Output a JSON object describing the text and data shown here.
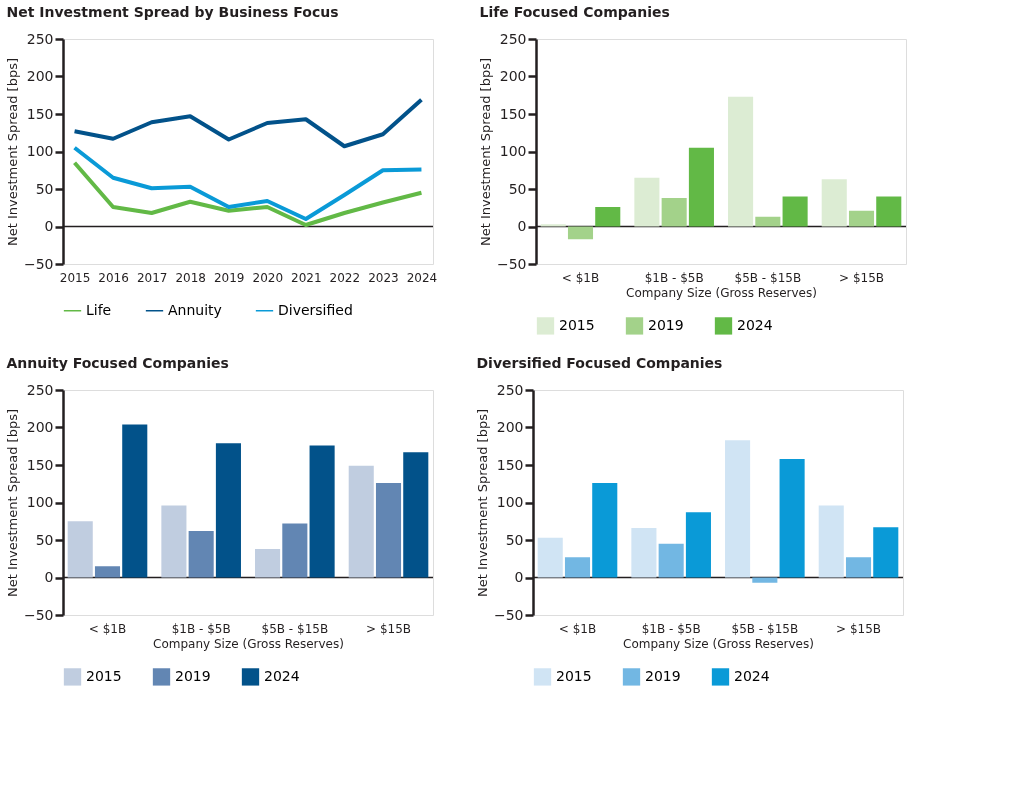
{
  "chart_data": [
    {
      "type": "line",
      "title": "Net Investment Spread by Business Focus",
      "ylabel": "Net Investment Spread [bps]",
      "categories": [
        "2015",
        "2016",
        "2017",
        "2018",
        "2019",
        "2020",
        "2021",
        "2022",
        "2023",
        "2024"
      ],
      "ylim": [
        -50,
        250
      ],
      "yticks": [
        -50,
        0,
        50,
        100,
        150,
        200,
        250
      ],
      "grid": false,
      "legend": "bottom",
      "marker": "none",
      "line_style": "solid",
      "ref_lines": [
        {
          "axis": "y",
          "value": 0,
          "color": "#231f20"
        }
      ],
      "series": [
        {
          "name": "Life",
          "color": "#62b946",
          "values": [
            85,
            26,
            18,
            33,
            21,
            26,
            2,
            18,
            32,
            45
          ]
        },
        {
          "name": "Annuity",
          "color": "#02528a",
          "values": [
            127,
            117,
            139,
            147,
            116,
            138,
            143,
            107,
            123,
            169
          ]
        },
        {
          "name": "Diversified",
          "color": "#0a9ad7",
          "values": [
            105,
            65,
            51,
            53,
            26,
            34,
            10,
            42,
            75,
            76
          ]
        }
      ]
    },
    {
      "type": "bar",
      "title": "Life Focused Companies",
      "xlabel": "Company Size (Gross Reserves)",
      "ylabel": "Net Investment Spread [bps]",
      "categories": [
        "< $1B",
        "$1B - $5B",
        "$5B - $15B",
        "> $15B"
      ],
      "ylim": [
        -50,
        250
      ],
      "yticks": [
        -50,
        0,
        50,
        100,
        150,
        200,
        250
      ],
      "grid": false,
      "legend": "bottom",
      "ref_lines": [
        {
          "axis": "y",
          "value": 0,
          "color": "#231f20"
        }
      ],
      "series": [
        {
          "name": "2015",
          "color": "#dcecd3",
          "values": [
            3,
            65,
            173,
            63
          ]
        },
        {
          "name": "2019",
          "color": "#a3d28a",
          "values": [
            -17,
            38,
            13,
            21
          ]
        },
        {
          "name": "2024",
          "color": "#62b946",
          "values": [
            26,
            105,
            40,
            40
          ]
        }
      ]
    },
    {
      "type": "bar",
      "title": "Annuity Focused Companies",
      "xlabel": "Company Size (Gross Reserves)",
      "ylabel": "Net Investment Spread [bps]",
      "categories": [
        "< $1B",
        "$1B - $5B",
        "$5B - $15B",
        "> $15B"
      ],
      "ylim": [
        -50,
        250
      ],
      "yticks": [
        -50,
        0,
        50,
        100,
        150,
        200,
        250
      ],
      "grid": false,
      "legend": "bottom",
      "ref_lines": [
        {
          "axis": "y",
          "value": 0,
          "color": "#231f20"
        }
      ],
      "series": [
        {
          "name": "2015",
          "color": "#c0cde0",
          "values": [
            75,
            96,
            38,
            149
          ]
        },
        {
          "name": "2019",
          "color": "#6286b3",
          "values": [
            15,
            62,
            72,
            126
          ]
        },
        {
          "name": "2024",
          "color": "#02528a",
          "values": [
            204,
            179,
            176,
            167
          ]
        }
      ]
    },
    {
      "type": "bar",
      "title": "Diversified Focused Companies",
      "xlabel": "Company Size (Gross Reserves)",
      "ylabel": "Net Investment Spread [bps]",
      "categories": [
        "< $1B",
        "$1B - $5B",
        "$5B - $15B",
        "> $15B"
      ],
      "ylim": [
        -50,
        250
      ],
      "yticks": [
        -50,
        0,
        50,
        100,
        150,
        200,
        250
      ],
      "grid": false,
      "legend": "bottom",
      "ref_lines": [
        {
          "axis": "y",
          "value": 0,
          "color": "#231f20"
        }
      ],
      "series": [
        {
          "name": "2015",
          "color": "#d0e4f4",
          "values": [
            53,
            66,
            183,
            96
          ]
        },
        {
          "name": "2019",
          "color": "#72b7e3",
          "values": [
            27,
            45,
            -7,
            27
          ]
        },
        {
          "name": "2024",
          "color": "#0a9ad7",
          "values": [
            126,
            87,
            158,
            67
          ]
        }
      ]
    }
  ]
}
